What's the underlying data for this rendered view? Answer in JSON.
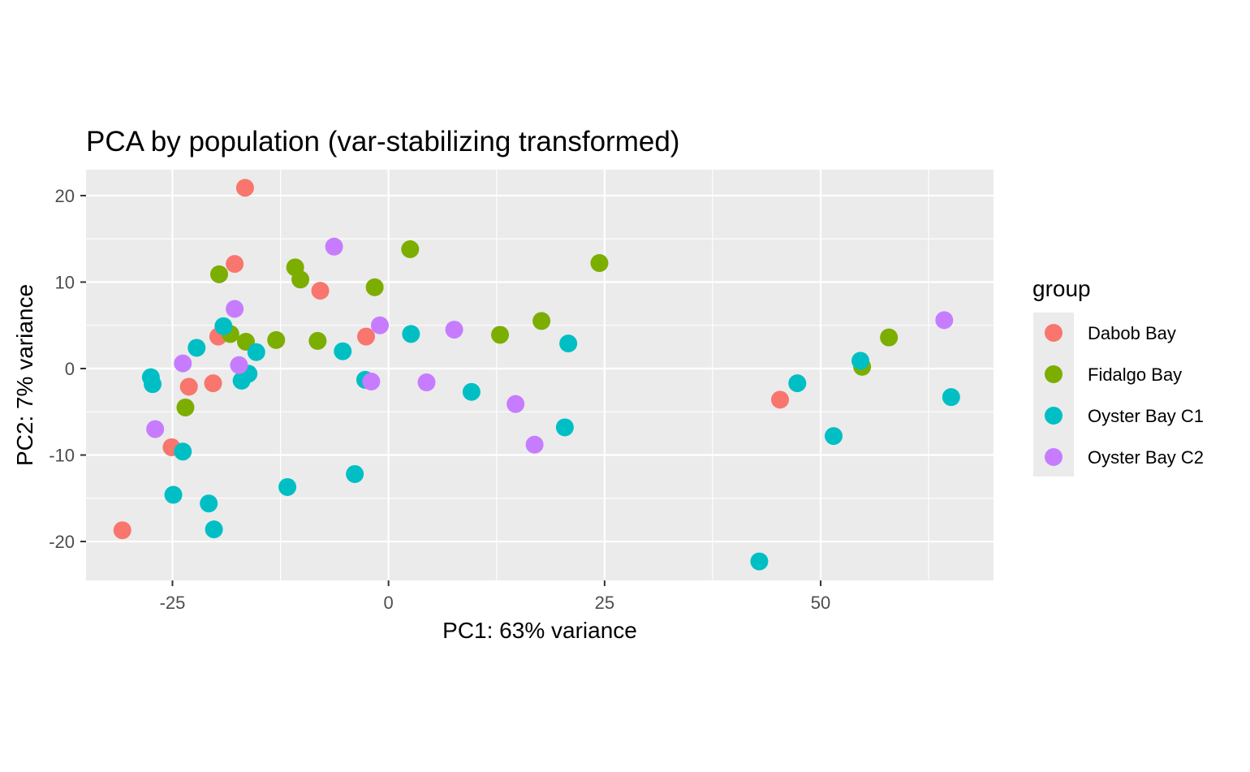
{
  "chart_data": {
    "type": "scatter",
    "title": "PCA by population (var-stabilizing transformed)",
    "xlabel": "PC1: 63% variance",
    "ylabel": "PC2: 7% variance",
    "xlim": [
      -35,
      70
    ],
    "ylim": [
      -24.5,
      23
    ],
    "x_ticks": [
      -25,
      0,
      25,
      50
    ],
    "y_ticks": [
      -20,
      -10,
      0,
      10,
      20
    ],
    "x_tick_labels": [
      "-25",
      "0",
      "25",
      "50"
    ],
    "y_tick_labels": [
      "-20",
      "-10",
      "0",
      "10",
      "20"
    ],
    "grid": true,
    "legend": {
      "title": "group",
      "position": "right"
    },
    "series": [
      {
        "name": "Dabob Bay",
        "color": "#F8766D",
        "points": [
          [
            -16.6,
            20.9
          ],
          [
            -17.8,
            12.1
          ],
          [
            -7.9,
            9.0
          ],
          [
            -19.7,
            3.7
          ],
          [
            -2.6,
            3.7
          ],
          [
            -23.1,
            -2.1
          ],
          [
            -20.3,
            -1.7
          ],
          [
            -25.1,
            -9.1
          ],
          [
            -30.8,
            -18.7
          ],
          [
            45.3,
            -3.6
          ]
        ]
      },
      {
        "name": "Fidalgo Bay",
        "color": "#7CAE00",
        "points": [
          [
            2.5,
            13.8
          ],
          [
            24.4,
            12.2
          ],
          [
            -10.8,
            11.7
          ],
          [
            -19.6,
            10.9
          ],
          [
            -10.2,
            10.3
          ],
          [
            -1.6,
            9.4
          ],
          [
            17.7,
            5.5
          ],
          [
            12.9,
            3.9
          ],
          [
            -18.3,
            4.0
          ],
          [
            -16.5,
            3.1
          ],
          [
            -13.0,
            3.3
          ],
          [
            -8.2,
            3.2
          ],
          [
            -23.5,
            -4.5
          ],
          [
            57.9,
            3.6
          ],
          [
            54.8,
            0.2
          ]
        ]
      },
      {
        "name": "Oyster Bay C1",
        "color": "#00BFC4",
        "points": [
          [
            -22.2,
            2.4
          ],
          [
            -19.1,
            4.9
          ],
          [
            -15.3,
            1.9
          ],
          [
            -16.2,
            -0.6
          ],
          [
            -17.0,
            -1.4
          ],
          [
            -27.5,
            -1.0
          ],
          [
            -27.3,
            -1.8
          ],
          [
            -5.3,
            2.0
          ],
          [
            2.6,
            4.0
          ],
          [
            20.8,
            2.9
          ],
          [
            -2.7,
            -1.3
          ],
          [
            9.6,
            -2.7
          ],
          [
            20.4,
            -6.8
          ],
          [
            -23.8,
            -9.6
          ],
          [
            -24.9,
            -14.6
          ],
          [
            -20.8,
            -15.6
          ],
          [
            -20.2,
            -18.6
          ],
          [
            -11.7,
            -13.7
          ],
          [
            -3.9,
            -12.2
          ],
          [
            42.9,
            -22.3
          ],
          [
            47.3,
            -1.7
          ],
          [
            51.5,
            -7.8
          ],
          [
            54.6,
            0.9
          ],
          [
            65.1,
            -3.3
          ]
        ]
      },
      {
        "name": "Oyster Bay C2",
        "color": "#C77CFF",
        "points": [
          [
            -6.3,
            14.1
          ],
          [
            -17.8,
            6.9
          ],
          [
            -1.0,
            5.0
          ],
          [
            7.6,
            4.5
          ],
          [
            -23.8,
            0.6
          ],
          [
            -17.3,
            0.4
          ],
          [
            -2.0,
            -1.5
          ],
          [
            4.4,
            -1.6
          ],
          [
            14.7,
            -4.1
          ],
          [
            -27.0,
            -7.0
          ],
          [
            16.9,
            -8.8
          ],
          [
            64.3,
            5.6
          ]
        ]
      }
    ]
  }
}
